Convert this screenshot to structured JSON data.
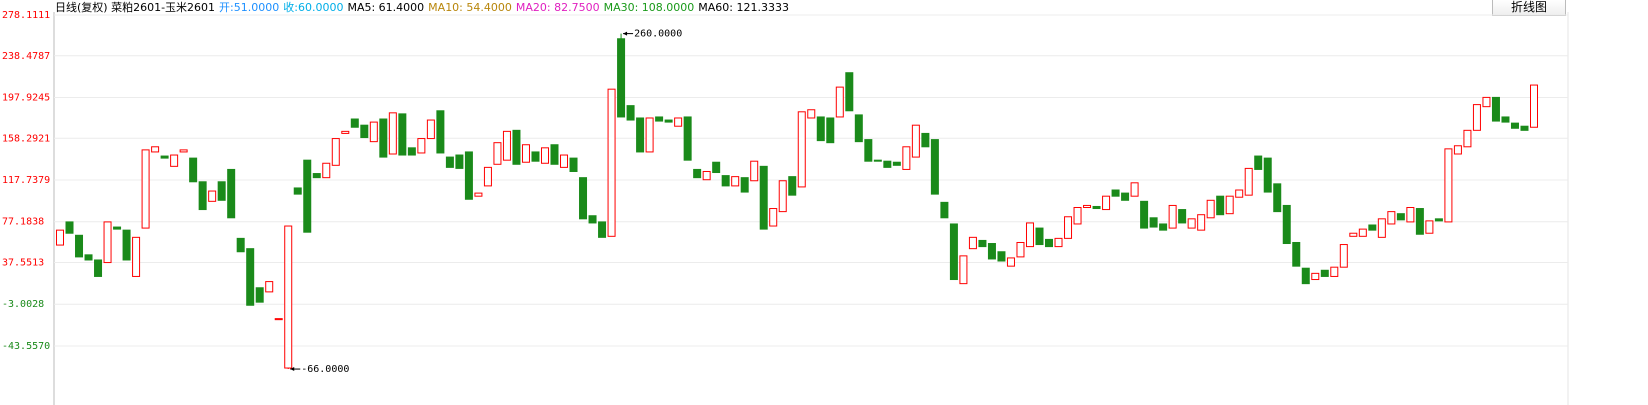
{
  "chart_data": {
    "type": "candlestick",
    "header": [
      {
        "label": "日线(复权) 菜粕2601-玉米2601",
        "color": "#000000"
      },
      {
        "label": "开:51.0000",
        "color": "#1e90ff"
      },
      {
        "label": "收:60.0000",
        "color": "#00aee8"
      },
      {
        "label": "MA5: 61.4000",
        "color": "#000000"
      },
      {
        "label": "MA10: 54.4000",
        "color": "#b8860b"
      },
      {
        "label": "MA20: 82.7500",
        "color": "#e020c0"
      },
      {
        "label": "MA30: 108.0000",
        "color": "#1a9a1a"
      },
      {
        "label": "MA60: 121.3333",
        "color": "#000000"
      }
    ],
    "button": "折线图",
    "colors": {
      "up": "#ff0000",
      "down": "#1a8a1a"
    },
    "ylim": [
      -81.5,
      281
    ],
    "yticks": [
      278.1111,
      238.4787,
      197.9245,
      158.2921,
      117.7379,
      77.1838,
      37.5513,
      -3.0028,
      {
        "value": -43.557,
        "label": "-43.5570"
      }
    ],
    "grid": true,
    "annotations": [
      {
        "value": 260,
        "label": "260.0000"
      },
      {
        "value": -66,
        "label": "-66.0000"
      }
    ],
    "open": [
      54.5,
      77,
      64,
      45,
      40,
      37.5,
      72,
      69,
      24,
      71,
      145,
      141,
      131,
      145,
      139,
      116,
      97,
      116,
      128,
      61,
      51,
      13,
      9,
      -18,
      -65,
      110,
      137,
      124,
      120,
      132,
      163,
      177,
      171,
      155,
      177,
      143,
      182,
      149,
      144,
      158,
      185,
      140,
      142,
      145,
      102,
      112,
      133,
      137,
      166,
      135,
      145,
      134,
      152,
      130,
      139,
      120,
      83,
      77,
      63,
      255,
      190,
      178,
      145,
      179,
      176,
      170,
      179,
      128,
      118,
      135,
      122,
      112,
      120,
      117,
      131,
      73,
      87,
      121,
      111,
      178,
      179,
      178,
      179,
      222,
      181,
      157,
      137,
      136,
      135,
      128,
      140,
      163,
      157,
      96,
      75,
      17,
      51,
      59,
      56,
      48,
      34,
      43,
      53,
      71,
      60,
      53,
      61,
      75,
      91,
      92,
      89,
      108,
      105,
      102,
      97,
      81,
      75,
      71,
      89,
      71,
      69,
      81,
      102,
      85,
      101,
      103,
      141,
      139,
      114,
      93,
      57,
      32,
      21,
      30,
      24,
      33,
      63,
      63,
      74,
      62,
      75,
      85,
      77,
      90,
      66,
      80,
      77,
      143,
      150,
      166,
      189,
      198,
      179,
      173,
      170,
      169
    ],
    "high": [
      69,
      77,
      64,
      45,
      40,
      77,
      72,
      69,
      62,
      147,
      150,
      141,
      142,
      147,
      139,
      116,
      107,
      116,
      128,
      61,
      51,
      13,
      19,
      -17,
      73,
      110,
      137,
      124,
      134,
      158,
      165,
      177,
      171,
      174,
      177,
      183,
      182,
      149,
      158,
      176,
      185,
      140,
      142,
      145,
      105,
      130,
      154,
      165,
      166,
      152,
      145,
      149,
      152,
      142,
      139,
      120,
      83,
      77,
      206,
      260,
      190,
      178,
      178,
      179,
      176,
      178,
      179,
      128,
      126,
      135,
      122,
      121,
      120,
      136,
      131,
      90,
      117,
      121,
      184,
      186,
      179,
      178,
      208,
      222,
      181,
      157,
      137,
      136,
      135,
      150,
      171,
      163,
      157,
      96,
      75,
      44,
      62,
      59,
      56,
      48,
      42,
      57,
      76,
      71,
      60,
      61,
      82,
      91,
      93,
      92,
      102,
      108,
      105,
      115,
      97,
      81,
      75,
      93,
      89,
      80,
      84,
      98,
      102,
      102,
      108,
      129,
      141,
      139,
      114,
      93,
      57,
      32,
      27,
      30,
      33,
      55,
      66,
      70,
      74,
      80,
      87,
      85,
      91,
      90,
      78,
      80,
      148,
      151,
      166,
      191,
      198,
      198,
      179,
      173,
      170,
      210
    ],
    "low": [
      54.5,
      66,
      43,
      40,
      24,
      37.5,
      70,
      40,
      24,
      71,
      145,
      139,
      131,
      145,
      116,
      89,
      97,
      98,
      81,
      48,
      -4,
      -1,
      9,
      -18,
      -66,
      104,
      67,
      120,
      120,
      132,
      163,
      169,
      159,
      155,
      140,
      143,
      142,
      142,
      144,
      158,
      144,
      130,
      129,
      99,
      102,
      112,
      133,
      137,
      133,
      135,
      136,
      134,
      133,
      130,
      126,
      80,
      76,
      62,
      63,
      179,
      176,
      145,
      145,
      175,
      174,
      170,
      137,
      120,
      118,
      125,
      112,
      112,
      106,
      117,
      70,
      73,
      87,
      103,
      111,
      178,
      156,
      154,
      179,
      185,
      155,
      136,
      136,
      130,
      132,
      128,
      140,
      150,
      104,
      81,
      21,
      17,
      51,
      53,
      41,
      39,
      34,
      43,
      53,
      55,
      53,
      53,
      61,
      75,
      91,
      90,
      89,
      102,
      98,
      102,
      71,
      72,
      69,
      71,
      76,
      71,
      69,
      81,
      84,
      85,
      101,
      103,
      128,
      106,
      87,
      56,
      34,
      17,
      21,
      24,
      24,
      33,
      63,
      63,
      69,
      62,
      75,
      79,
      77,
      65,
      66,
      78,
      77,
      143,
      150,
      166,
      189,
      175,
      174,
      168,
      166,
      169
    ],
    "close": [
      69,
      66,
      43,
      40,
      24,
      77,
      70,
      40,
      62,
      147,
      150,
      139,
      142,
      147,
      116,
      89,
      107,
      98,
      81,
      48,
      -4,
      -1,
      19,
      -17,
      73,
      104,
      67,
      120,
      134,
      158,
      165,
      169,
      159,
      174,
      140,
      183,
      142,
      142,
      158,
      176,
      144,
      130,
      129,
      99,
      105,
      130,
      154,
      165,
      133,
      152,
      136,
      149,
      133,
      142,
      126,
      80,
      76,
      62,
      206,
      179,
      176,
      145,
      178,
      175,
      174,
      178,
      137,
      120,
      126,
      125,
      112,
      121,
      106,
      136,
      70,
      90,
      117,
      103,
      184,
      186,
      156,
      154,
      208,
      185,
      155,
      136,
      136,
      130,
      132,
      150,
      171,
      150,
      104,
      81,
      21,
      44,
      62,
      53,
      41,
      39,
      42,
      57,
      76,
      55,
      53,
      61,
      82,
      91,
      93,
      90,
      102,
      102,
      98,
      115,
      71,
      72,
      69,
      93,
      76,
      80,
      84,
      98,
      84,
      102,
      108,
      129,
      128,
      106,
      87,
      56,
      34,
      17,
      27,
      24,
      33,
      55,
      66,
      70,
      69,
      80,
      87,
      79,
      91,
      65,
      78,
      78,
      148,
      151,
      166,
      191,
      198,
      175,
      174,
      168,
      166,
      210
    ]
  }
}
